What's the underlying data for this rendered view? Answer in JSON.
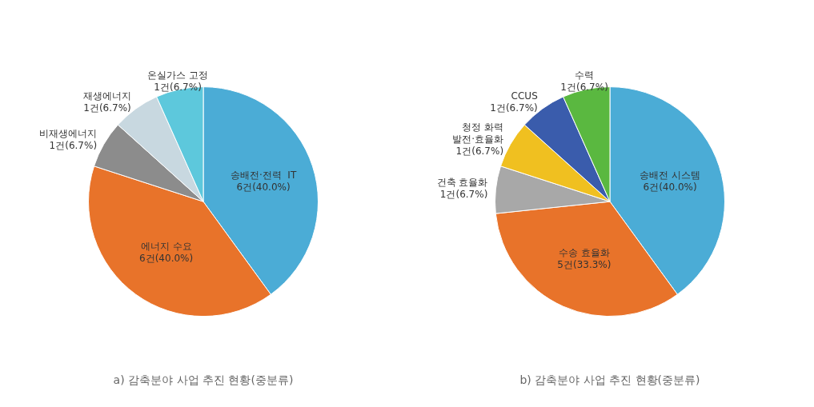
{
  "chart_data": [
    {
      "type": "pie",
      "title": "a) 감축분야 사업 추진 현황(중분류)",
      "categories": [
        "송배전·전력  IT",
        "에너지 수요",
        "비재생에너지",
        "재생에너지",
        "온실가스 고정"
      ],
      "values": [
        6,
        6,
        1,
        1,
        1
      ],
      "value_labels": [
        "6건(40.0%)",
        "6건(40.0%)",
        "1건(6.7%)",
        "1건(6.7%)",
        "1건(6.7%)"
      ],
      "colors": [
        "#4BACD6",
        "#E8732A",
        "#8C8C8C",
        "#C8D8E0",
        "#5DC8DC"
      ],
      "data_labels": true
    },
    {
      "type": "pie",
      "title": "b) 감축분야 사업 추진 현황(중분류)",
      "categories": [
        "송배전 시스템",
        "수송 효율화",
        "건축 효율화",
        "청정 화력\n발전·효율화",
        "CCUS",
        "수력"
      ],
      "values": [
        6,
        5,
        1,
        1,
        1,
        1
      ],
      "value_labels": [
        "6건(40.0%)",
        "5건(33.3%)",
        "1건(6.7%)",
        "1건(6.7%)",
        "1건(6.7%)",
        "1건(6.7%)"
      ],
      "colors": [
        "#4BACD6",
        "#E8732A",
        "#A8A8A8",
        "#F0C020",
        "#3A5CAC",
        "#5AB840"
      ],
      "data_labels": true
    }
  ]
}
